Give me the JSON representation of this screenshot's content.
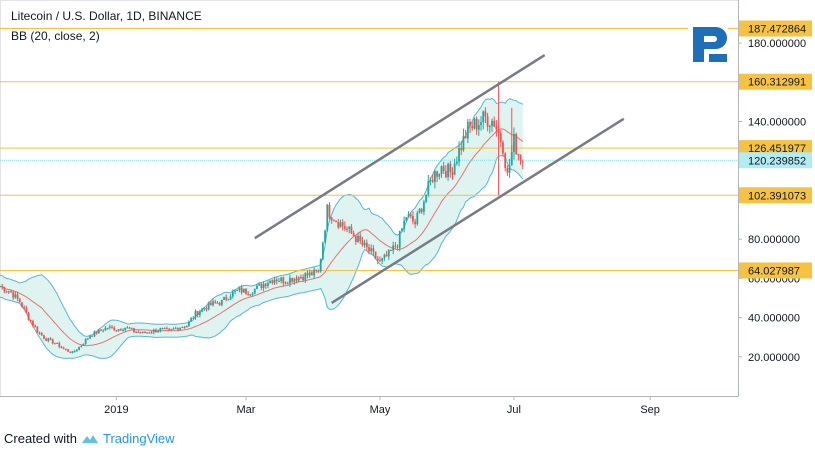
{
  "header": {
    "title": "Litecoin / U.S. Dollar, 1D, BINANCE",
    "indicator": "BB (20, close, 2)"
  },
  "footer": {
    "created_with": "Created with",
    "brand": "TradingView"
  },
  "colors": {
    "up": "#26a69a",
    "down": "#ef5350",
    "level": "#f5c242",
    "level_label_bg": "#f5c242",
    "current_label_bg": "#b2ebf2",
    "channel": "#787b86",
    "bb_fill": "#d7f1ec",
    "bb_line": "#58b6cf",
    "bb_mid": "#e57373",
    "logo": "#1e6fb8"
  },
  "chart_data": {
    "type": "candlestick",
    "title": "Litecoin / U.S. Dollar, 1D, BINANCE",
    "ylim": [
      0,
      202
    ],
    "y_ticks": [
      {
        "value": 20,
        "label": "20.000000"
      },
      {
        "value": 40,
        "label": "40.000000"
      },
      {
        "value": 60,
        "label": "60.000000"
      },
      {
        "value": 80,
        "label": "80.000000"
      },
      {
        "value": 140,
        "label": "140.000000"
      },
      {
        "value": 180,
        "label": "180.000000"
      }
    ],
    "x_ticks": [
      {
        "day": 36,
        "label": "2019"
      },
      {
        "day": 95,
        "label": "Mar"
      },
      {
        "day": 156,
        "label": "May"
      },
      {
        "day": 217,
        "label": "Jul"
      },
      {
        "day": 279,
        "label": "Sep"
      }
    ],
    "x_range": [
      -17,
      319
    ],
    "levels": [
      {
        "value": 187.472864,
        "label": "187.472864"
      },
      {
        "value": 160.312991,
        "label": "160.312991"
      },
      {
        "value": 126.451977,
        "label": "126.451977"
      },
      {
        "value": 102.391073,
        "label": "102.391073"
      },
      {
        "value": 64.027987,
        "label": "64.027987"
      }
    ],
    "current_price": {
      "value": 120.239852,
      "label": "120.239852"
    },
    "channel": [
      {
        "x1": 99,
        "y1": 80.5,
        "x2": 231,
        "y2": 173.9
      },
      {
        "x1": 134,
        "y1": 47.5,
        "x2": 267,
        "y2": 141.4
      }
    ],
    "price_path": [
      [
        -17,
        56
      ],
      [
        -12,
        53
      ],
      [
        -8,
        48
      ],
      [
        -4,
        40
      ],
      [
        0,
        33
      ],
      [
        4,
        29
      ],
      [
        8,
        27
      ],
      [
        12,
        24
      ],
      [
        16,
        22
      ],
      [
        20,
        26
      ],
      [
        24,
        31
      ],
      [
        28,
        33
      ],
      [
        32,
        35
      ],
      [
        36,
        34
      ],
      [
        40,
        35
      ],
      [
        44,
        33
      ],
      [
        48,
        32
      ],
      [
        52,
        33
      ],
      [
        56,
        34
      ],
      [
        60,
        33
      ],
      [
        64,
        35
      ],
      [
        68,
        36
      ],
      [
        72,
        42
      ],
      [
        76,
        45
      ],
      [
        80,
        47
      ],
      [
        84,
        48
      ],
      [
        88,
        52
      ],
      [
        92,
        54
      ],
      [
        96,
        53
      ],
      [
        100,
        55
      ],
      [
        104,
        58
      ],
      [
        108,
        60
      ],
      [
        112,
        59
      ],
      [
        116,
        60
      ],
      [
        120,
        61
      ],
      [
        124,
        62
      ],
      [
        128,
        63
      ],
      [
        132,
        95
      ],
      [
        136,
        90
      ],
      [
        140,
        86
      ],
      [
        144,
        82
      ],
      [
        148,
        77
      ],
      [
        152,
        73
      ],
      [
        156,
        68
      ],
      [
        160,
        72
      ],
      [
        164,
        78
      ],
      [
        168,
        92
      ],
      [
        172,
        88
      ],
      [
        176,
        100
      ],
      [
        180,
        112
      ],
      [
        184,
        117
      ],
      [
        188,
        114
      ],
      [
        192,
        125
      ],
      [
        196,
        136
      ],
      [
        200,
        139
      ],
      [
        204,
        142
      ],
      [
        208,
        140
      ],
      [
        212,
        128
      ],
      [
        214,
        112
      ],
      [
        217,
        130
      ],
      [
        219,
        124
      ],
      [
        221,
        120
      ]
    ],
    "wicks_high": [
      {
        "day": 210,
        "value": 160.3
      },
      {
        "day": 216,
        "value": 147
      }
    ],
    "wicks_low": [
      {
        "day": 210,
        "value": 102.4
      }
    ]
  }
}
